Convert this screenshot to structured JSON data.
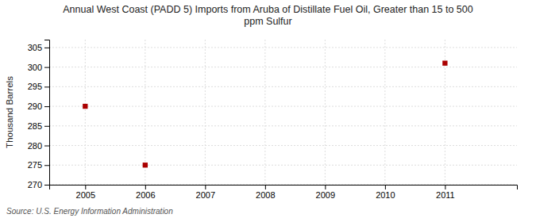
{
  "chart_data": {
    "type": "scatter",
    "title": [
      "Annual West Coast (PADD 5) Imports from Aruba of Distillate Fuel Oil, Greater than 15 to 500",
      "ppm Sulfur"
    ],
    "ylabel": "Thousand Barrels",
    "source": "Source: U.S. Energy Information Administration",
    "x": [
      2005,
      2006,
      2011
    ],
    "values": [
      290,
      275,
      301
    ],
    "color": "#aa0000",
    "marker": "square",
    "xlim": [
      2004.4,
      2012.2
    ],
    "ylim": [
      270,
      307
    ],
    "xticks": [
      2005,
      2006,
      2007,
      2008,
      2009,
      2010,
      2011
    ],
    "yticks": [
      270,
      275,
      280,
      285,
      290,
      295,
      300,
      305
    ],
    "grid": true
  }
}
